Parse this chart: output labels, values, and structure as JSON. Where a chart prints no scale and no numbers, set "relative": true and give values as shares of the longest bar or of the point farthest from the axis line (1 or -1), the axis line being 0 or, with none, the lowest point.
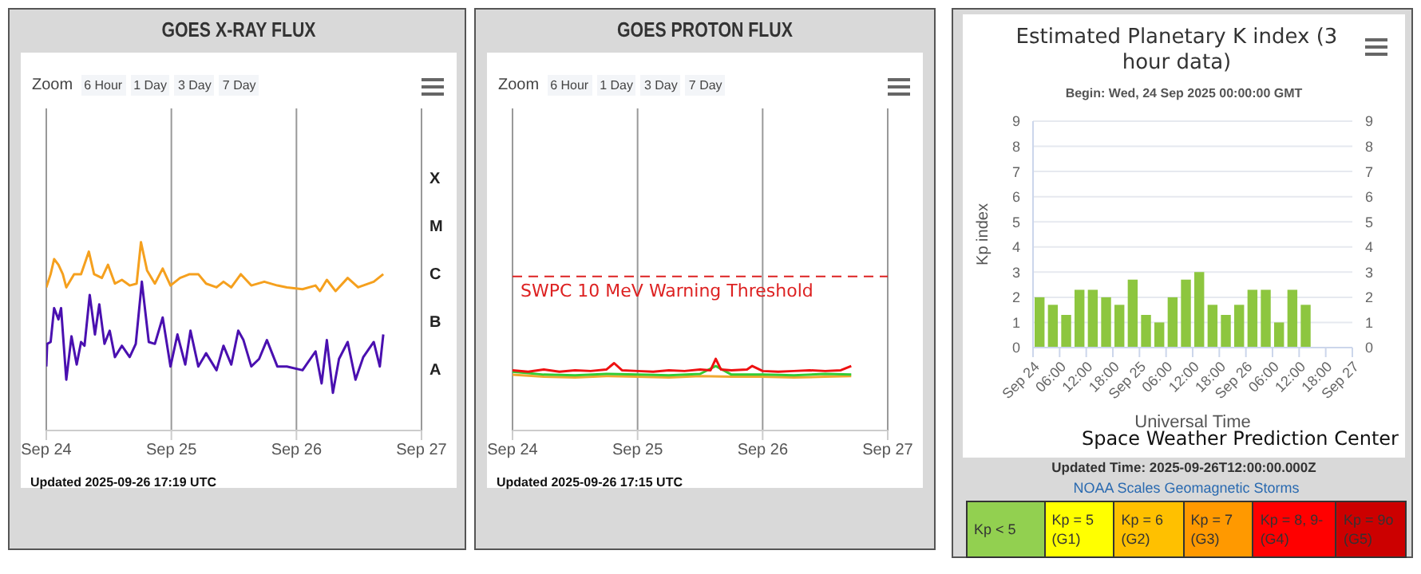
{
  "chart_data": [
    {
      "type": "line",
      "title": "GOES X-RAY FLUX",
      "annotations": [
        "Zoom",
        "6 Hour",
        "1 Day",
        "3 Day",
        "7 Day",
        "X",
        "M",
        "C",
        "B",
        "A",
        "Updated 2025-09-26 17:19 UTC"
      ],
      "relative": true,
      "xlim": [
        "2025-09-24",
        "2025-09-27"
      ],
      "xticks": [
        {
          "value": "2025-09-24",
          "label": "Sep 24"
        },
        {
          "value": "2025-09-25",
          "label": "Sep 25"
        },
        {
          "value": "2025-09-26",
          "label": "Sep 26"
        },
        {
          "value": "2025-09-27",
          "label": "Sep 27"
        }
      ],
      "grid": "x",
      "series": [
        {
          "color": "#f5a01e",
          "x": [
            "2025-09-24T00:00",
            "2025-09-24T00:50",
            "2025-09-24T01:30",
            "2025-09-24T02:20",
            "2025-09-24T03:10",
            "2025-09-24T03:50",
            "2025-09-24T05:20",
            "2025-09-24T06:40",
            "2025-09-24T08:10",
            "2025-09-24T09:10",
            "2025-09-24T10:40",
            "2025-09-24T11:50",
            "2025-09-24T13:10",
            "2025-09-24T14:30",
            "2025-09-24T16:00",
            "2025-09-24T17:20",
            "2025-09-24T18:10",
            "2025-09-24T19:20",
            "2025-09-24T20:50",
            "2025-09-24T22:20",
            "2025-09-24T23:50",
            "2025-09-25T01:40",
            "2025-09-25T03:30",
            "2025-09-25T05:10",
            "2025-09-25T06:40",
            "2025-09-25T08:40",
            "2025-09-25T10:00",
            "2025-09-25T11:30",
            "2025-09-25T13:20",
            "2025-09-25T15:20",
            "2025-09-25T17:50",
            "2025-09-25T20:20",
            "2025-09-25T22:10",
            "2025-09-26T01:10",
            "2025-09-26T03:40",
            "2025-09-26T04:30",
            "2025-09-26T05:50",
            "2025-09-26T07:30",
            "2025-09-26T09:50",
            "2025-09-26T11:50",
            "2025-09-26T14:50",
            "2025-09-26T16:40"
          ],
          "values": [
            0.76,
            0.83,
            0.91,
            0.88,
            0.83,
            0.76,
            0.83,
            0.83,
            0.95,
            0.83,
            0.81,
            0.88,
            0.78,
            0.8,
            0.77,
            0.78,
            1,
            0.85,
            0.78,
            0.86,
            0.77,
            0.81,
            0.83,
            0.83,
            0.78,
            0.76,
            0.79,
            0.76,
            0.83,
            0.77,
            0.79,
            0.77,
            0.76,
            0.75,
            0.77,
            0.74,
            0.8,
            0.74,
            0.81,
            0.76,
            0.79,
            0.83
          ]
        },
        {
          "color": "#4a10b0",
          "x": [
            "2025-09-24T00:00",
            "2025-09-24T00:10",
            "2025-09-24T00:50",
            "2025-09-24T01:30",
            "2025-09-24T02:20",
            "2025-09-24T02:50",
            "2025-09-24T03:50",
            "2025-09-24T04:50",
            "2025-09-24T05:50",
            "2025-09-24T06:40",
            "2025-09-24T07:20",
            "2025-09-24T08:20",
            "2025-09-24T09:20",
            "2025-09-24T10:10",
            "2025-09-24T11:10",
            "2025-09-24T12:10",
            "2025-09-24T13:10",
            "2025-09-24T14:30",
            "2025-09-24T16:00",
            "2025-09-24T17:10",
            "2025-09-24T18:20",
            "2025-09-24T19:40",
            "2025-09-24T20:50",
            "2025-09-24T22:20",
            "2025-09-24T23:50",
            "2025-09-25T01:10",
            "2025-09-25T02:40",
            "2025-09-25T03:40",
            "2025-09-25T05:10",
            "2025-09-25T06:40",
            "2025-09-25T08:40",
            "2025-09-25T10:00",
            "2025-09-25T11:30",
            "2025-09-25T12:50",
            "2025-09-25T13:50",
            "2025-09-25T15:20",
            "2025-09-25T16:50",
            "2025-09-25T18:20",
            "2025-09-25T20:20",
            "2025-09-25T22:10",
            "2025-09-26T01:10",
            "2025-09-26T03:40",
            "2025-09-26T04:50",
            "2025-09-26T05:50",
            "2025-09-26T07:00",
            "2025-09-26T08:10",
            "2025-09-26T09:50",
            "2025-09-26T11:20",
            "2025-09-26T12:50",
            "2025-09-26T14:50",
            "2025-09-26T16:00",
            "2025-09-26T16:40"
          ],
          "values": [
            0.34,
            0.46,
            0.47,
            0.65,
            0.59,
            0.65,
            0.27,
            0.5,
            0.35,
            0.47,
            0.45,
            0.72,
            0.51,
            0.67,
            0.46,
            0.53,
            0.39,
            0.45,
            0.39,
            0.46,
            0.79,
            0.47,
            0.46,
            0.6,
            0.34,
            0.51,
            0.35,
            0.53,
            0.34,
            0.41,
            0.32,
            0.45,
            0.35,
            0.53,
            0.48,
            0.34,
            0.38,
            0.48,
            0.34,
            0.34,
            0.32,
            0.42,
            0.25,
            0.48,
            0.2,
            0.38,
            0.47,
            0.27,
            0.39,
            0.47,
            0.34,
            0.51
          ]
        }
      ]
    },
    {
      "type": "line",
      "title": "GOES PROTON FLUX",
      "annotations": [
        "Zoom",
        "6 Hour",
        "1 Day",
        "3 Day",
        "7 Day",
        "Updated 2025-09-26 17:15 UTC"
      ],
      "relative": true,
      "xlim": [
        "2025-09-24",
        "2025-09-27"
      ],
      "xticks": [
        {
          "value": "2025-09-24",
          "label": "Sep 24"
        },
        {
          "value": "2025-09-25",
          "label": "Sep 25"
        },
        {
          "value": "2025-09-26",
          "label": "Sep 26"
        },
        {
          "value": "2025-09-27",
          "label": "Sep 27"
        }
      ],
      "grid": "x",
      "ref_lines": [
        {
          "axis": "y",
          "value": 2.15,
          "label": "SWPC 10 MeV Warning Threshold",
          "color": "#dd2222",
          "line_style": "dashed"
        }
      ],
      "series": [
        {
          "color": "#f0a830",
          "x": [
            "2025-09-24T00:00",
            "2025-09-24T06:00",
            "2025-09-24T12:00",
            "2025-09-24T18:00",
            "2025-09-25T00:00",
            "2025-09-25T06:00",
            "2025-09-25T12:00",
            "2025-09-25T18:00",
            "2025-09-26T00:00",
            "2025-09-26T06:00",
            "2025-09-26T12:00",
            "2025-09-26T17:00"
          ],
          "values": [
            0.78,
            0.75,
            0.74,
            0.76,
            0.75,
            0.74,
            0.76,
            0.75,
            0.75,
            0.74,
            0.75,
            0.76
          ]
        },
        {
          "color": "#33cc33",
          "x": [
            "2025-09-24T00:00",
            "2025-09-24T06:00",
            "2025-09-24T12:00",
            "2025-09-24T18:00",
            "2025-09-25T00:00",
            "2025-09-25T06:00",
            "2025-09-25T12:00",
            "2025-09-25T15:00",
            "2025-09-25T18:00",
            "2025-09-26T00:00",
            "2025-09-26T06:00",
            "2025-09-26T12:00",
            "2025-09-26T17:00"
          ],
          "values": [
            0.82,
            0.78,
            0.77,
            0.79,
            0.78,
            0.77,
            0.79,
            0.9,
            0.78,
            0.78,
            0.77,
            0.79,
            0.78
          ]
        },
        {
          "color": "#ee1111",
          "x": [
            "2025-09-24T00:00",
            "2025-09-24T03:00",
            "2025-09-24T06:00",
            "2025-09-24T09:00",
            "2025-09-24T12:00",
            "2025-09-24T15:00",
            "2025-09-24T18:00",
            "2025-09-24T19:30",
            "2025-09-24T21:00",
            "2025-09-25T00:00",
            "2025-09-25T03:00",
            "2025-09-25T06:00",
            "2025-09-25T09:00",
            "2025-09-25T12:00",
            "2025-09-25T14:00",
            "2025-09-25T15:00",
            "2025-09-25T16:00",
            "2025-09-25T18:00",
            "2025-09-25T21:00",
            "2025-09-25T22:00",
            "2025-09-26T00:00",
            "2025-09-26T03:00",
            "2025-09-26T06:00",
            "2025-09-26T09:00",
            "2025-09-26T12:00",
            "2025-09-26T15:00",
            "2025-09-26T17:00"
          ],
          "values": [
            0.84,
            0.82,
            0.85,
            0.82,
            0.84,
            0.83,
            0.85,
            0.94,
            0.84,
            0.83,
            0.82,
            0.84,
            0.83,
            0.85,
            0.84,
            1,
            0.85,
            0.84,
            0.85,
            0.9,
            0.83,
            0.82,
            0.83,
            0.84,
            0.83,
            0.84,
            0.9
          ]
        }
      ]
    },
    {
      "type": "bar",
      "title": "Estimated Planetary K index (3 hour data)",
      "subtitle": "Begin: Wed, 24 Sep 2025 00:00:00 GMT",
      "xlabel": "Universal Time",
      "ylabel": "Kp index",
      "annotations": [
        "Space Weather Prediction Center",
        "Updated Time: 2025-09-26T12:00:00.000Z"
      ],
      "xlim": [
        "2025-09-24",
        "2025-09-27"
      ],
      "xticks": [
        {
          "value": "2025-09-24T00:00",
          "label": "Sep 24"
        },
        {
          "value": "2025-09-24T06:00",
          "label": "06:00"
        },
        {
          "value": "2025-09-24T12:00",
          "label": "12:00"
        },
        {
          "value": "2025-09-24T18:00",
          "label": "18:00"
        },
        {
          "value": "2025-09-25T00:00",
          "label": "Sep 25"
        },
        {
          "value": "2025-09-25T06:00",
          "label": "06:00"
        },
        {
          "value": "2025-09-25T12:00",
          "label": "12:00"
        },
        {
          "value": "2025-09-25T18:00",
          "label": "18:00"
        },
        {
          "value": "2025-09-26T00:00",
          "label": "Sep 26"
        },
        {
          "value": "2025-09-26T06:00",
          "label": "06:00"
        },
        {
          "value": "2025-09-26T12:00",
          "label": "12:00"
        },
        {
          "value": "2025-09-26T18:00",
          "label": "18:00"
        },
        {
          "value": "2025-09-27T00:00",
          "label": "Sep 27"
        }
      ],
      "ylim": [
        0,
        9
      ],
      "yticks": [
        0,
        1,
        2,
        3,
        4,
        5,
        6,
        7,
        8,
        9
      ],
      "y2lim": [
        0,
        9
      ],
      "y2ticks": [
        0,
        1,
        2,
        3,
        4,
        5,
        6,
        7,
        8,
        9
      ],
      "grid": "y",
      "x": [
        "2025-09-24T01:30",
        "2025-09-24T04:30",
        "2025-09-24T07:30",
        "2025-09-24T10:30",
        "2025-09-24T13:30",
        "2025-09-24T16:30",
        "2025-09-24T19:30",
        "2025-09-24T22:30",
        "2025-09-25T01:30",
        "2025-09-25T04:30",
        "2025-09-25T07:30",
        "2025-09-25T10:30",
        "2025-09-25T13:30",
        "2025-09-25T16:30",
        "2025-09-25T19:30",
        "2025-09-25T22:30",
        "2025-09-26T01:30",
        "2025-09-26T04:30",
        "2025-09-26T07:30",
        "2025-09-26T10:30",
        "2025-09-26T13:30"
      ],
      "series": [
        {
          "color": "#8dc63f",
          "values": [
            2.0,
            1.7,
            1.3,
            2.3,
            2.3,
            2.0,
            1.7,
            2.7,
            1.3,
            1.0,
            2.0,
            2.7,
            3.0,
            1.7,
            1.3,
            1.7,
            2.3,
            2.3,
            1.0,
            2.3,
            1.7
          ]
        }
      ]
    },
    {
      "type": "other",
      "title": "NOAA Scales Geomagnetic Storms",
      "categories": [
        "Kp < 5",
        "Kp = 5 (G1)",
        "Kp = 6 (G2)",
        "Kp = 7 (G3)",
        "Kp = 8, 9- (G4)",
        "Kp = 9o (G5)"
      ],
      "colors": [
        "#92d050",
        "#ffff00",
        "#ffc000",
        "#ff9900",
        "#ff0000",
        "#cc0000"
      ]
    }
  ]
}
